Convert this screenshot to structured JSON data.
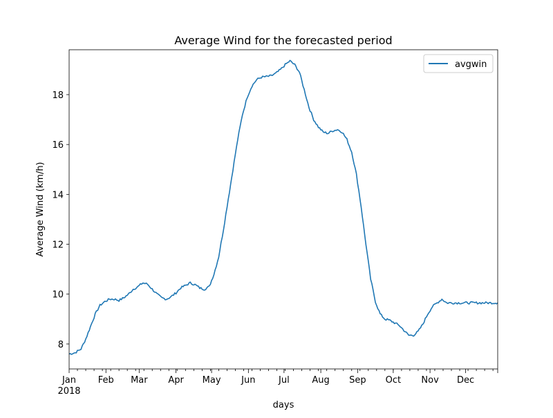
{
  "chart_data": {
    "type": "line",
    "title": "Average Wind for the forecasted period",
    "xlabel": "days",
    "ylabel": "Average Wind (km/h)",
    "x_ticks": [
      {
        "label": "Jan",
        "sub": "2018",
        "day": 0
      },
      {
        "label": "Feb",
        "day": 31
      },
      {
        "label": "Mar",
        "day": 59
      },
      {
        "label": "Apr",
        "day": 90
      },
      {
        "label": "May",
        "day": 120
      },
      {
        "label": "Jun",
        "day": 151
      },
      {
        "label": "Jul",
        "day": 181
      },
      {
        "label": "Aug",
        "day": 212
      },
      {
        "label": "Sep",
        "day": 243
      },
      {
        "label": "Oct",
        "day": 273
      },
      {
        "label": "Nov",
        "day": 304
      },
      {
        "label": "Dec",
        "day": 334
      }
    ],
    "xlim": [
      0,
      361
    ],
    "ylim": [
      7.0,
      19.8
    ],
    "y_ticks": [
      8,
      10,
      12,
      14,
      16,
      18
    ],
    "legend_position": "top-right",
    "grid": false,
    "series": [
      {
        "name": "avgwin",
        "color": "#1f77b4",
        "points": [
          [
            0,
            7.6
          ],
          [
            5,
            7.65
          ],
          [
            10,
            7.8
          ],
          [
            14,
            8.2
          ],
          [
            18,
            8.7
          ],
          [
            22,
            9.2
          ],
          [
            26,
            9.55
          ],
          [
            30,
            9.7
          ],
          [
            34,
            9.8
          ],
          [
            38,
            9.8
          ],
          [
            42,
            9.75
          ],
          [
            46,
            9.85
          ],
          [
            50,
            10.0
          ],
          [
            54,
            10.2
          ],
          [
            58,
            10.3
          ],
          [
            62,
            10.45
          ],
          [
            66,
            10.4
          ],
          [
            70,
            10.2
          ],
          [
            74,
            10.0
          ],
          [
            78,
            9.85
          ],
          [
            82,
            9.8
          ],
          [
            86,
            9.9
          ],
          [
            90,
            10.05
          ],
          [
            94,
            10.25
          ],
          [
            98,
            10.35
          ],
          [
            102,
            10.45
          ],
          [
            106,
            10.38
          ],
          [
            110,
            10.25
          ],
          [
            114,
            10.2
          ],
          [
            118,
            10.3
          ],
          [
            122,
            10.8
          ],
          [
            126,
            11.5
          ],
          [
            130,
            12.6
          ],
          [
            134,
            13.8
          ],
          [
            138,
            15.0
          ],
          [
            142,
            16.2
          ],
          [
            146,
            17.2
          ],
          [
            150,
            17.9
          ],
          [
            154,
            18.35
          ],
          [
            158,
            18.6
          ],
          [
            162,
            18.7
          ],
          [
            166,
            18.72
          ],
          [
            170,
            18.75
          ],
          [
            174,
            18.85
          ],
          [
            178,
            19.0
          ],
          [
            182,
            19.2
          ],
          [
            186,
            19.35
          ],
          [
            190,
            19.2
          ],
          [
            194,
            18.9
          ],
          [
            198,
            18.2
          ],
          [
            202,
            17.5
          ],
          [
            206,
            17.0
          ],
          [
            210,
            16.7
          ],
          [
            214,
            16.5
          ],
          [
            218,
            16.45
          ],
          [
            222,
            16.55
          ],
          [
            226,
            16.6
          ],
          [
            230,
            16.5
          ],
          [
            234,
            16.2
          ],
          [
            238,
            15.7
          ],
          [
            242,
            14.8
          ],
          [
            246,
            13.5
          ],
          [
            250,
            12.0
          ],
          [
            254,
            10.6
          ],
          [
            258,
            9.7
          ],
          [
            262,
            9.2
          ],
          [
            266,
            9.0
          ],
          [
            270,
            8.95
          ],
          [
            274,
            8.85
          ],
          [
            278,
            8.75
          ],
          [
            282,
            8.55
          ],
          [
            286,
            8.35
          ],
          [
            290,
            8.35
          ],
          [
            294,
            8.5
          ],
          [
            298,
            8.8
          ],
          [
            302,
            9.2
          ],
          [
            306,
            9.5
          ],
          [
            310,
            9.65
          ],
          [
            314,
            9.8
          ],
          [
            318,
            9.65
          ],
          [
            361,
            9.65
          ]
        ]
      }
    ]
  }
}
